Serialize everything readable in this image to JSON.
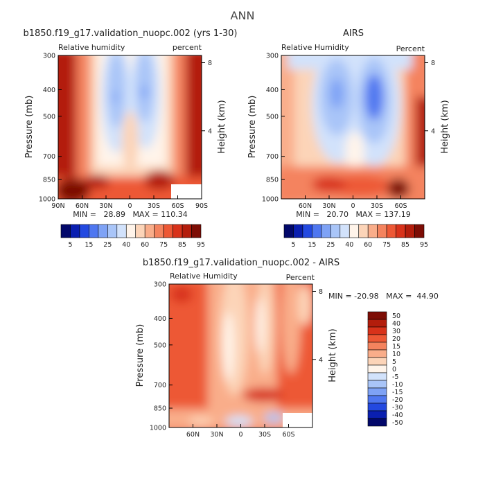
{
  "page_title": "ANN",
  "chart_data": [
    {
      "type": "heatmap",
      "id": "model",
      "title": "b1850.f19_g17.validation_nuopc.002 (yrs 1-30)",
      "left_label": "Relative humidity",
      "right_label": "percent",
      "ylabel": "Pressure (mb)",
      "y2label": "Height (km)",
      "xticks": [
        "90N",
        "60N",
        "30N",
        "0",
        "30S",
        "60S",
        "90S"
      ],
      "yticks": [
        "300",
        "400",
        "500",
        "700",
        "850",
        "1000"
      ],
      "y2ticks": [
        "8",
        "4"
      ],
      "stats_text": "MIN =   28.89   MAX = 110.34",
      "min": 28.89,
      "max": 110.34
    },
    {
      "type": "heatmap",
      "id": "obs",
      "title": "AIRS",
      "left_label": "Relative Humidity",
      "right_label": "Percent",
      "ylabel": "Pressure (mb)",
      "y2label": "Height (km)",
      "xticks": [
        "60N",
        "30N",
        "0",
        "30S",
        "60S"
      ],
      "yticks": [
        "300",
        "400",
        "500",
        "700",
        "850",
        "1000"
      ],
      "y2ticks": [
        "8",
        "4"
      ],
      "stats_text": "MIN =   20.70   MAX = 137.19",
      "min": 20.7,
      "max": 137.19
    },
    {
      "type": "heatmap",
      "id": "diff",
      "title": "b1850.f19_g17.validation_nuopc.002 - AIRS",
      "left_label": "Relative Humidity",
      "right_label": "Percent",
      "ylabel": "Pressure (mb)",
      "y2label": "Height (km)",
      "xticks": [
        "60N",
        "30N",
        "0",
        "30S",
        "60S"
      ],
      "yticks": [
        "300",
        "400",
        "500",
        "700",
        "850",
        "1000"
      ],
      "y2ticks": [
        "8",
        "4"
      ],
      "stats_text": "MIN = -20.98   MAX =  44.90",
      "min": -20.98,
      "max": 44.9
    }
  ],
  "colorbar_main": {
    "labels": [
      "5",
      "15",
      "25",
      "40",
      "60",
      "75",
      "85",
      "95"
    ],
    "colors": [
      "#02086a",
      "#0a1fb0",
      "#2349e0",
      "#4f77f0",
      "#7ea2f5",
      "#a9c5f8",
      "#d2e2fb",
      "#fff4ea",
      "#fcd4b8",
      "#f9ad8a",
      "#f4835e",
      "#ed5835",
      "#d8321a",
      "#b31d0c",
      "#7d0d05"
    ]
  },
  "colorbar_diff": {
    "labels": [
      "50",
      "40",
      "30",
      "20",
      "15",
      "10",
      "5",
      "0",
      "-5",
      "-10",
      "-15",
      "-20",
      "-30",
      "-40",
      "-50"
    ],
    "colors": [
      "#7d0d05",
      "#b31d0c",
      "#d8321a",
      "#ed5835",
      "#f4835e",
      "#f9ad8a",
      "#fcd4b8",
      "#fff4ea",
      "#d2e2fb",
      "#a9c5f8",
      "#7ea2f5",
      "#4f77f0",
      "#2349e0",
      "#0a1fb0",
      "#02086a"
    ]
  }
}
